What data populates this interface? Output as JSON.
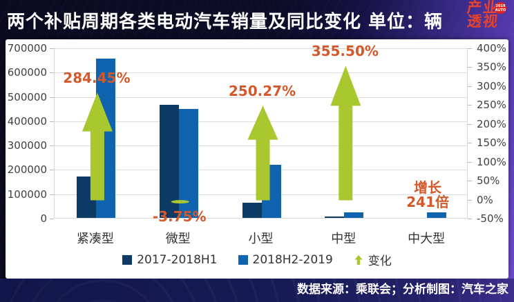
{
  "header": {
    "title": "两个补贴周期各类电动汽车销量及同比变化 单位：辆"
  },
  "logo": {
    "line1": "产业",
    "line2": "透视",
    "badge_line1": "2019",
    "badge_line2": "AUTO"
  },
  "footer": {
    "source": "数据来源：乘联会；分析制图：汽车之家"
  },
  "colors": {
    "series1": "#0e3a66",
    "series2": "#0f63af",
    "change_green": "#a9c72f",
    "annotation_orange": "#d4582a",
    "grid": "#dcdcdc",
    "axis_text": "#404040",
    "category_text": "#333333",
    "panel_bg": "#ffffff",
    "page_dark": "#0c0c26",
    "page_purple": "#6f4cd4",
    "logo_red": "#e8432c"
  },
  "chart_data": {
    "type": "bar",
    "title": "两个补贴周期各类电动汽车销量及同比变化",
    "unit_label": "单位：辆",
    "categories": [
      "紧凑型",
      "微型",
      "小型",
      "中型",
      "中大型"
    ],
    "series": [
      {
        "name": "2017-2018H1",
        "color": "#0e3a66",
        "values": [
          170000,
          464800,
          62000,
          4800,
          90
        ]
      },
      {
        "name": "2018H2-2019",
        "color": "#0f63af",
        "values": [
          653500,
          447400,
          217200,
          21900,
          21800
        ]
      }
    ],
    "change": {
      "name": "变化",
      "color": "#a9c72f",
      "values_pct": [
        284.45,
        -3.75,
        250.27,
        355.5,
        null
      ]
    },
    "annotations": [
      {
        "index": 0,
        "text": "284.45%",
        "placement": "above-arrow"
      },
      {
        "index": 1,
        "text": "-3.75%",
        "placement": "below-zero"
      },
      {
        "index": 2,
        "text": "250.27%",
        "placement": "above-arrow"
      },
      {
        "index": 3,
        "text": "355.50%",
        "placement": "above-arrow"
      },
      {
        "index": 4,
        "text": "增长\n241倍",
        "placement": "above-bar"
      }
    ],
    "left_axis": {
      "min": 0,
      "max": 700000,
      "step": 100000
    },
    "right_axis": {
      "min": -50,
      "max": 400,
      "step": 50,
      "suffix": "%"
    },
    "grid": true,
    "legend_position": "bottom",
    "values_estimated": true
  }
}
